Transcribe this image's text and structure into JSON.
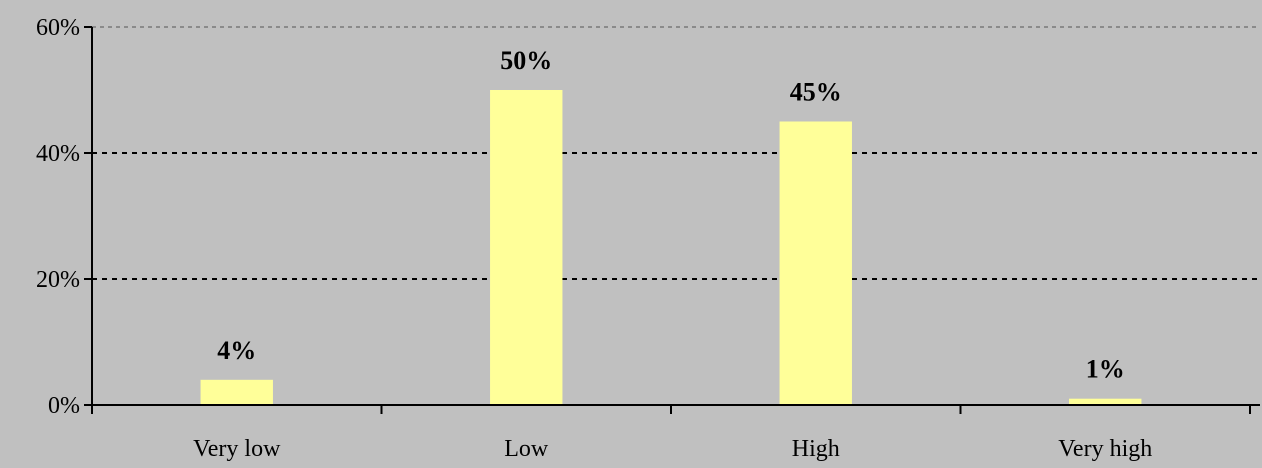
{
  "chart_data": {
    "type": "bar",
    "title": "",
    "xlabel": "",
    "ylabel": "",
    "categories": [
      "Very low",
      "Low",
      "High",
      "Very high"
    ],
    "values": [
      4,
      50,
      45,
      1
    ],
    "data_labels": [
      "4%",
      "50%",
      "45%",
      "1%"
    ],
    "ylim": [
      0,
      60
    ],
    "yticks": [
      0,
      20,
      40,
      60
    ],
    "ytick_labels": [
      "0%",
      "20%",
      "40%",
      "60%"
    ],
    "grid": "horizontal-dashed",
    "legend": "none",
    "colors": {
      "bar": "#ffff99",
      "background": "#c0c0c0",
      "axis": "#000000"
    }
  }
}
